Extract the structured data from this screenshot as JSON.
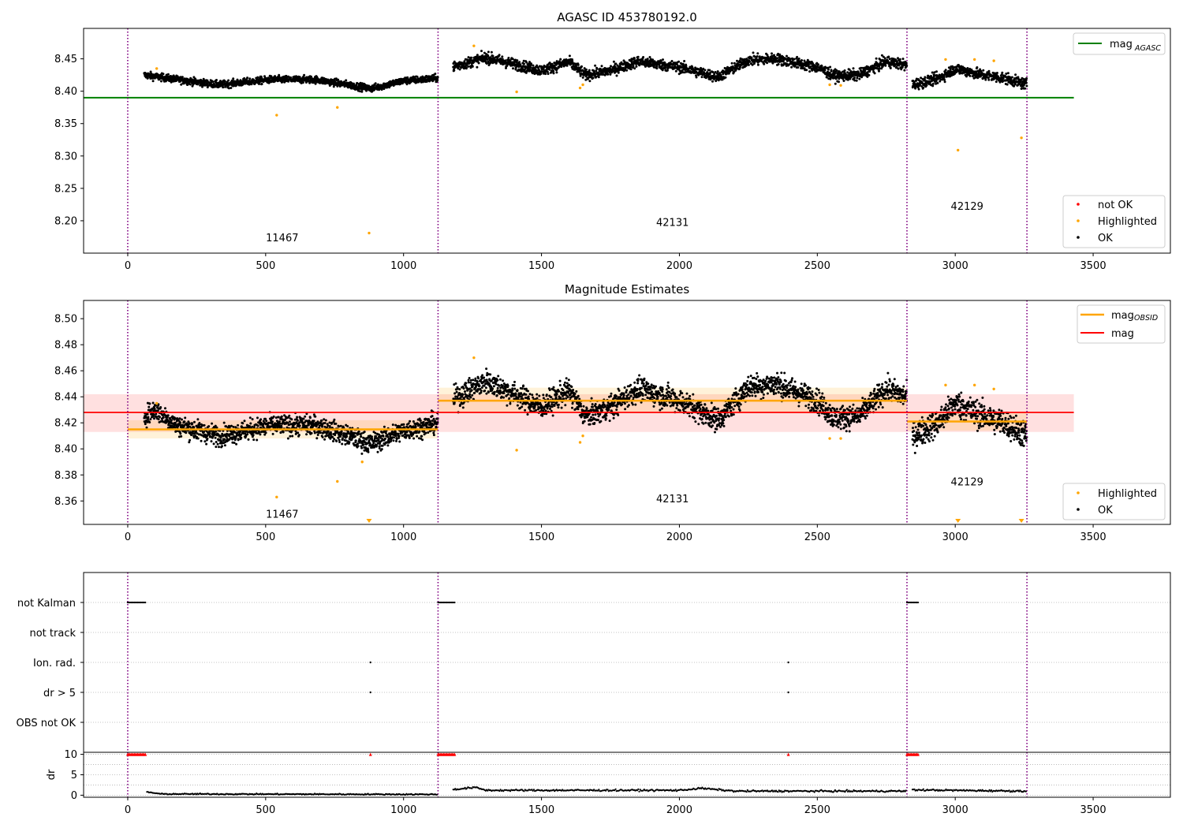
{
  "chart_data": [
    {
      "type": "scatter",
      "title": "AGASC ID 453780192.0",
      "xlabel": "",
      "ylabel": "",
      "xlim": [
        -160,
        3780
      ],
      "ylim": [
        8.15,
        8.497
      ],
      "xticks": [
        0,
        500,
        1000,
        1500,
        2000,
        2500,
        3000,
        3500
      ],
      "yticks": [
        8.2,
        8.25,
        8.3,
        8.35,
        8.4,
        8.45
      ],
      "ytick_labels": [
        "8.20",
        "8.25",
        "8.30",
        "8.35",
        "8.40",
        "8.45"
      ],
      "grid": false,
      "obsid_boundaries": [
        0,
        1125,
        2825,
        3260
      ],
      "obsid_labels": [
        {
          "text": "11467",
          "x": 560,
          "y": 8.168
        },
        {
          "text": "42131",
          "x": 1975,
          "y": 8.192
        },
        {
          "text": "42129",
          "x": 3043,
          "y": 8.217
        }
      ],
      "reference_line": {
        "name": "mag",
        "sub": "AGASC",
        "y": 8.39,
        "x0": -160,
        "x1": 3430,
        "color": "#008000"
      },
      "segments": [
        {
          "x0": 60,
          "x1": 1125,
          "ok_knots": [
            [
              60,
              8.425
            ],
            [
              180,
              8.418
            ],
            [
              330,
              8.41
            ],
            [
              520,
              8.418
            ],
            [
              680,
              8.418
            ],
            [
              800,
              8.41
            ],
            [
              880,
              8.404
            ],
            [
              1000,
              8.416
            ],
            [
              1125,
              8.42
            ]
          ],
          "spread": 0.004
        },
        {
          "x0": 1180,
          "x1": 2825,
          "ok_knots": [
            [
              1180,
              8.438
            ],
            [
              1300,
              8.452
            ],
            [
              1400,
              8.442
            ],
            [
              1500,
              8.432
            ],
            [
              1600,
              8.445
            ],
            [
              1660,
              8.425
            ],
            [
              1750,
              8.432
            ],
            [
              1850,
              8.446
            ],
            [
              2000,
              8.437
            ],
            [
              2140,
              8.422
            ],
            [
              2250,
              8.448
            ],
            [
              2350,
              8.45
            ],
            [
              2500,
              8.437
            ],
            [
              2560,
              8.424
            ],
            [
              2650,
              8.425
            ],
            [
              2750,
              8.446
            ],
            [
              2825,
              8.44
            ]
          ],
          "spread": 0.006
        },
        {
          "x0": 2845,
          "x1": 3260,
          "ok_knots": [
            [
              2845,
              8.41
            ],
            [
              2940,
              8.42
            ],
            [
              3000,
              8.435
            ],
            [
              3100,
              8.425
            ],
            [
              3180,
              8.42
            ],
            [
              3260,
              8.41
            ]
          ],
          "spread": 0.006
        }
      ],
      "highlighted": [
        [
          105,
          8.435
        ],
        [
          540,
          8.363
        ],
        [
          760,
          8.375
        ],
        [
          875,
          8.181
        ],
        [
          1255,
          8.47
        ],
        [
          1410,
          8.399
        ],
        [
          1640,
          8.405
        ],
        [
          1650,
          8.41
        ],
        [
          2545,
          8.41
        ],
        [
          2585,
          8.409
        ],
        [
          2965,
          8.449
        ],
        [
          3010,
          8.309
        ],
        [
          3070,
          8.449
        ],
        [
          3140,
          8.447
        ],
        [
          3240,
          8.328
        ]
      ],
      "not_ok": [],
      "legend_upper": {
        "position": "upper-right",
        "entries": [
          {
            "label": "mag",
            "sub": "AGASC",
            "color": "#008000"
          }
        ]
      },
      "legend_lower": {
        "position": "lower-right",
        "entries": [
          {
            "label": "not OK",
            "color": "#ff0000"
          },
          {
            "label": "Highlighted",
            "color": "#ffa500"
          },
          {
            "label": "OK",
            "color": "#000000"
          }
        ]
      },
      "colors": {
        "ok": "#000000",
        "highlighted": "#ffa500",
        "not_ok": "#ff0000",
        "boundary": "#800080"
      }
    },
    {
      "type": "scatter",
      "title": "Magnitude Estimates",
      "xlabel": "",
      "ylabel": "",
      "xlim": [
        -160,
        3780
      ],
      "ylim": [
        8.342,
        8.514
      ],
      "xticks": [
        0,
        500,
        1000,
        1500,
        2000,
        2500,
        3000,
        3500
      ],
      "yticks": [
        8.36,
        8.38,
        8.4,
        8.42,
        8.44,
        8.46,
        8.48,
        8.5
      ],
      "ytick_labels": [
        "8.36",
        "8.38",
        "8.40",
        "8.42",
        "8.44",
        "8.46",
        "8.48",
        "8.50"
      ],
      "grid": false,
      "obsid_boundaries": [
        0,
        1125,
        2825,
        3260
      ],
      "obsid_labels": [
        {
          "text": "11467",
          "x": 560,
          "y": 8.347
        },
        {
          "text": "42131",
          "x": 1975,
          "y": 8.359
        },
        {
          "text": "42129",
          "x": 3043,
          "y": 8.372
        }
      ],
      "mag_line": {
        "name": "mag",
        "y": 8.428,
        "band": [
          8.413,
          8.442
        ],
        "x0": -160,
        "x1": 3430,
        "color": "#ff0000"
      },
      "obsid_mags": [
        {
          "x0": 0,
          "x1": 1125,
          "y": 8.415,
          "band": [
            8.408,
            8.422
          ]
        },
        {
          "x0": 1125,
          "x1": 2825,
          "y": 8.437,
          "band": [
            8.428,
            8.447
          ]
        },
        {
          "x0": 2825,
          "x1": 3260,
          "y": 8.421,
          "band": [
            8.414,
            8.428
          ]
        }
      ],
      "segments": [
        {
          "x0": 60,
          "x1": 1125,
          "ok_knots": [
            [
              60,
              8.425
            ],
            [
              100,
              8.43
            ],
            [
              180,
              8.418
            ],
            [
              330,
              8.41
            ],
            [
              520,
              8.418
            ],
            [
              680,
              8.418
            ],
            [
              800,
              8.41
            ],
            [
              880,
              8.404
            ],
            [
              1000,
              8.414
            ],
            [
              1125,
              8.42
            ]
          ],
          "spread": 0.0055
        },
        {
          "x0": 1180,
          "x1": 2825,
          "ok_knots": [
            [
              1180,
              8.438
            ],
            [
              1300,
              8.452
            ],
            [
              1400,
              8.442
            ],
            [
              1500,
              8.432
            ],
            [
              1600,
              8.445
            ],
            [
              1660,
              8.425
            ],
            [
              1750,
              8.432
            ],
            [
              1850,
              8.446
            ],
            [
              2000,
              8.437
            ],
            [
              2140,
              8.422
            ],
            [
              2250,
              8.448
            ],
            [
              2350,
              8.45
            ],
            [
              2500,
              8.437
            ],
            [
              2560,
              8.424
            ],
            [
              2650,
              8.425
            ],
            [
              2750,
              8.446
            ],
            [
              2825,
              8.44
            ]
          ],
          "spread": 0.0065
        },
        {
          "x0": 2845,
          "x1": 3260,
          "ok_knots": [
            [
              2845,
              8.41
            ],
            [
              2940,
              8.42
            ],
            [
              3000,
              8.435
            ],
            [
              3100,
              8.425
            ],
            [
              3180,
              8.42
            ],
            [
              3260,
              8.41
            ]
          ],
          "spread": 0.0075
        }
      ],
      "highlighted": [
        [
          105,
          8.435
        ],
        [
          540,
          8.363
        ],
        [
          760,
          8.375
        ],
        [
          850,
          8.39
        ],
        [
          1255,
          8.47
        ],
        [
          1410,
          8.399
        ],
        [
          1640,
          8.405
        ],
        [
          1650,
          8.41
        ],
        [
          2545,
          8.408
        ],
        [
          2585,
          8.408
        ],
        [
          2965,
          8.449
        ],
        [
          3070,
          8.449
        ],
        [
          3140,
          8.446
        ]
      ],
      "below_range_markers": [
        875,
        3010,
        3240
      ],
      "legend_upper": {
        "position": "upper-right",
        "entries": [
          {
            "label": "mag",
            "sub": "OBSID",
            "color": "#ffa500"
          },
          {
            "label": "mag",
            "color": "#ff0000"
          }
        ]
      },
      "legend_lower": {
        "position": "lower-right",
        "entries": [
          {
            "label": "Highlighted",
            "color": "#ffa500"
          },
          {
            "label": "OK",
            "color": "#000000"
          }
        ]
      },
      "colors": {
        "ok": "#000000",
        "highlighted": "#ffa500",
        "obsid_mag": "#ffa500",
        "mag": "#ff0000",
        "boundary": "#800080"
      }
    },
    {
      "type": "scatter",
      "title": "",
      "xlabel": "",
      "ylabel": "",
      "xlim": [
        -160,
        3780
      ],
      "categories": [
        "not Kalman",
        "not track",
        "Ion. rad.",
        "dr > 5",
        "OBS not OK"
      ],
      "flag_spans": [
        {
          "category": "not Kalman",
          "ranges": [
            [
              0,
              65
            ],
            [
              1125,
              1185
            ],
            [
              2825,
              2865
            ]
          ]
        },
        {
          "category": "Ion. rad.",
          "points": [
            880,
            2395
          ]
        },
        {
          "category": "dr > 5",
          "points": [
            880,
            2395
          ]
        }
      ],
      "obsid_boundaries": [
        0,
        1125,
        2825,
        3260
      ],
      "colors": {
        "flag": "#000000",
        "grid": "#b0b0b0",
        "boundary": "#800080"
      }
    },
    {
      "type": "scatter",
      "title": "",
      "xlabel": "",
      "ylabel": "dr",
      "xlim": [
        -160,
        3780
      ],
      "ylim": [
        -0.5,
        10.5
      ],
      "xticks": [
        0,
        500,
        1000,
        1500,
        2000,
        2500,
        3000,
        3500
      ],
      "yticks": [
        0,
        5,
        10
      ],
      "clip_value": 10,
      "clipped_ranges": [
        [
          0,
          65
        ],
        [
          1125,
          1185
        ],
        [
          2825,
          2865
        ]
      ],
      "clipped_points": [
        880,
        2395
      ],
      "segments": [
        {
          "x0": 70,
          "x1": 1125,
          "knots": [
            [
              70,
              0.8
            ],
            [
              120,
              0.3
            ],
            [
              1125,
              0.2
            ]
          ],
          "spread": 0.2
        },
        {
          "x0": 1180,
          "x1": 2825,
          "knots": [
            [
              1180,
              1.4
            ],
            [
              1260,
              1.9
            ],
            [
              1300,
              1.2
            ],
            [
              2000,
              1.2
            ],
            [
              2080,
              1.7
            ],
            [
              2200,
              1.0
            ],
            [
              2825,
              1.0
            ]
          ],
          "spread": 0.3
        },
        {
          "x0": 2845,
          "x1": 3260,
          "knots": [
            [
              2845,
              1.3
            ],
            [
              3260,
              1.0
            ]
          ],
          "spread": 0.3
        }
      ],
      "obsid_boundaries": [
        0,
        1125,
        2825,
        3260
      ],
      "colors": {
        "point": "#000000",
        "clipped": "#ff0000",
        "boundary": "#800080",
        "grid": "#b0b0b0"
      }
    }
  ]
}
